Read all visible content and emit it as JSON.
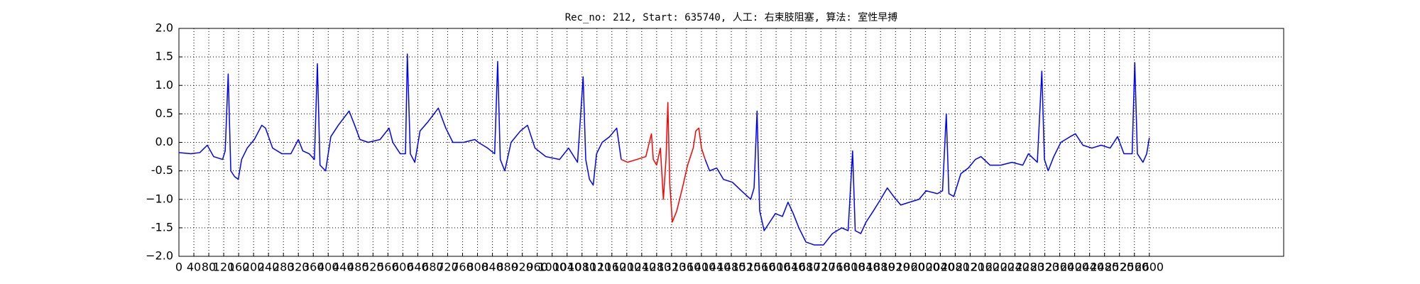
{
  "chart_data": {
    "type": "line",
    "title": "Rec_no: 212, Start: 635740, 人工: 右束肢阻塞, 算法: 室性早搏",
    "x": [
      0,
      32,
      56,
      76,
      93,
      117,
      124,
      132,
      139,
      149,
      159,
      168,
      183,
      202,
      222,
      232,
      251,
      276,
      300,
      320,
      332,
      349,
      363,
      371,
      378,
      393,
      407,
      427,
      456,
      471,
      485,
      507,
      539,
      563,
      573,
      593,
      607,
      612,
      620,
      632,
      646,
      666,
      695,
      715,
      734,
      763,
      793,
      802,
      827,
      846,
      854,
      861,
      873,
      890,
      915,
      934,
      954,
      983,
      1020,
      1044,
      1068,
      1083,
      1090,
      1100,
      1110,
      1119,
      1134,
      1154,
      1173,
      1185,
      1202,
      1227,
      1251,
      1266,
      1271,
      1280,
      1290,
      1298,
      1305,
      1310,
      1315,
      1322,
      1334,
      1349,
      1363,
      1378,
      1385,
      1393,
      1400,
      1410,
      1422,
      1441,
      1459,
      1483,
      1507,
      1532,
      1541,
      1549,
      1556,
      1568,
      1583,
      1598,
      1617,
      1632,
      1646,
      1661,
      1680,
      1702,
      1727,
      1751,
      1776,
      1793,
      1805,
      1812,
      1827,
      1841,
      1861,
      1880,
      1898,
      1915,
      1934,
      1958,
      1983,
      2002,
      2032,
      2046,
      2056,
      2063,
      2076,
      2095,
      2115,
      2134,
      2149,
      2173,
      2202,
      2232,
      2261,
      2276,
      2300,
      2312,
      2319,
      2329,
      2344,
      2363,
      2388,
      2402,
      2422,
      2446,
      2471,
      2495,
      2515,
      2532,
      2554,
      2561,
      2568,
      2583,
      2593,
      2600
    ],
    "series": [
      {
        "color": "#0000ff",
        "values": [
          -0.18,
          -0.2,
          -0.18,
          -0.05,
          -0.25,
          -0.3,
          -0.15,
          1.2,
          -0.5,
          -0.6,
          -0.65,
          -0.3,
          -0.1,
          0.05,
          0.3,
          0.25,
          -0.1,
          -0.2,
          -0.2,
          0.05,
          -0.15,
          -0.2,
          -0.3,
          1.38,
          -0.4,
          -0.5,
          0.1,
          0.3,
          0.55,
          0.3,
          0.05,
          0.0,
          0.05,
          0.25,
          0.0,
          -0.2,
          -0.2,
          1.55,
          -0.2,
          -0.35,
          0.2,
          0.35,
          0.6,
          0.25,
          0.0,
          0.0,
          0.05,
          0.0,
          -0.1,
          -0.2,
          1.42,
          -0.3,
          -0.5,
          0.0,
          0.2,
          0.3,
          -0.1,
          -0.25,
          -0.3,
          -0.1,
          -0.35,
          1.15,
          -0.3,
          -0.65,
          -0.75,
          -0.2,
          0.0,
          0.1,
          0.25,
          -0.3,
          null,
          null,
          null,
          null,
          null,
          null,
          null,
          null,
          null,
          null,
          null,
          null,
          null,
          null,
          null,
          null,
          null,
          null,
          null,
          -0.3,
          -0.5,
          -0.45,
          -0.65,
          -0.7,
          -0.85,
          -1.0,
          -0.8,
          0.55,
          -1.2,
          -1.55,
          -1.4,
          -1.25,
          -1.3,
          -1.05,
          -1.25,
          -1.5,
          -1.75,
          -1.8,
          -1.8,
          -1.6,
          -1.5,
          -1.55,
          -0.15,
          -1.55,
          -1.6,
          -1.4,
          -1.2,
          -1.0,
          -0.8,
          -0.95,
          -1.1,
          -1.05,
          -1.0,
          -0.85,
          -0.9,
          -0.85,
          0.5,
          -0.9,
          -0.95,
          -0.55,
          -0.45,
          -0.3,
          -0.25,
          -0.4,
          -0.4,
          -0.35,
          -0.4,
          -0.2,
          -0.35,
          1.25,
          -0.3,
          -0.5,
          -0.25,
          0.0,
          0.1,
          0.15,
          -0.05,
          -0.1,
          -0.05,
          -0.1,
          0.1,
          -0.2,
          -0.2,
          1.4,
          -0.2,
          -0.35,
          -0.2,
          0.08
        ]
      },
      {
        "color": "#ff0000",
        "values": [
          null,
          null,
          null,
          null,
          null,
          null,
          null,
          null,
          null,
          null,
          null,
          null,
          null,
          null,
          null,
          null,
          null,
          null,
          null,
          null,
          null,
          null,
          null,
          null,
          null,
          null,
          null,
          null,
          null,
          null,
          null,
          null,
          null,
          null,
          null,
          null,
          null,
          null,
          null,
          null,
          null,
          null,
          null,
          null,
          null,
          null,
          null,
          null,
          null,
          null,
          null,
          null,
          null,
          null,
          null,
          null,
          null,
          null,
          null,
          null,
          null,
          null,
          null,
          null,
          null,
          null,
          null,
          null,
          null,
          -0.3,
          -0.35,
          -0.3,
          -0.25,
          0.15,
          -0.3,
          -0.4,
          -0.1,
          -1.0,
          -0.3,
          0.7,
          -0.7,
          -1.4,
          -1.2,
          -0.8,
          -0.4,
          -0.1,
          0.2,
          0.25,
          -0.1,
          -0.3,
          null,
          null,
          null,
          null,
          null,
          null,
          null,
          null,
          null,
          null,
          null,
          null,
          null,
          null,
          null,
          null,
          null,
          null,
          null,
          null,
          null,
          null,
          null,
          null,
          null,
          null,
          null,
          null,
          null,
          null,
          null,
          null,
          null,
          null,
          null,
          null,
          null,
          null,
          null,
          null,
          null,
          null,
          null,
          null,
          null,
          null,
          null,
          null,
          null,
          null,
          null,
          null,
          null,
          null,
          null,
          null,
          null,
          null,
          null,
          null,
          null,
          null,
          null,
          null,
          null,
          null,
          null,
          null
        ]
      }
    ],
    "xlim": [
      0,
      2960
    ],
    "ylim": [
      -2.0,
      2.0
    ],
    "xticks": [
      0,
      40,
      80,
      120,
      160,
      200,
      240,
      280,
      320,
      360,
      400,
      440,
      480,
      520,
      560,
      600,
      640,
      680,
      720,
      760,
      800,
      840,
      880,
      920,
      960,
      1000,
      1040,
      1080,
      1120,
      1160,
      1200,
      1240,
      1280,
      1320,
      1360,
      1400,
      1440,
      1480,
      1520,
      1560,
      1600,
      1640,
      1680,
      1720,
      1760,
      1800,
      1840,
      1880,
      1920,
      1960,
      2000,
      2040,
      2080,
      2120,
      2160,
      2200,
      2240,
      2280,
      2320,
      2360,
      2400,
      2440,
      2480,
      2520,
      2560,
      2600
    ],
    "yticks": [
      {
        "value": -2.0,
        "label": "−2.0"
      },
      -1.5,
      {
        "value": -1.0,
        "label": "−1.0"
      },
      -0.5,
      {
        "value": 0.0,
        "label": "0.0"
      },
      0.5,
      {
        "value": 1.0,
        "label": "1.0"
      },
      1.5,
      {
        "value": 2.0,
        "label": "2.0"
      }
    ],
    "grid": true
  }
}
